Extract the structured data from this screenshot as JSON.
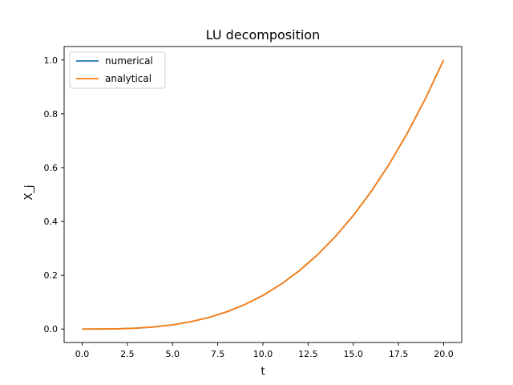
{
  "chart_data": {
    "type": "line",
    "title": "LU decomposition",
    "xlabel": "t",
    "ylabel": "X_j",
    "xlim": [
      -1.0,
      21.0
    ],
    "ylim": [
      -0.05,
      1.05
    ],
    "xticks": [
      0.0,
      2.5,
      5.0,
      7.5,
      10.0,
      12.5,
      15.0,
      17.5,
      20.0
    ],
    "xtick_labels": [
      "0.0",
      "2.5",
      "5.0",
      "7.5",
      "10.0",
      "12.5",
      "15.0",
      "17.5",
      "20.0"
    ],
    "yticks": [
      0.0,
      0.2,
      0.4,
      0.6,
      0.8,
      1.0
    ],
    "ytick_labels": [
      "0.0",
      "0.2",
      "0.4",
      "0.6",
      "0.8",
      "1.0"
    ],
    "grid": false,
    "legend_position": "top-left",
    "x": [
      0,
      1,
      2,
      3,
      4,
      5,
      6,
      7,
      8,
      9,
      10,
      11,
      12,
      13,
      14,
      15,
      16,
      17,
      18,
      19,
      20
    ],
    "series": [
      {
        "name": "numerical",
        "color": "#1f77b4",
        "values": [
          0.0,
          0.000125,
          0.001,
          0.003375,
          0.008,
          0.015625,
          0.027,
          0.042875,
          0.064,
          0.091125,
          0.125,
          0.166375,
          0.216,
          0.274625,
          0.343,
          0.421875,
          0.512,
          0.614125,
          0.729,
          0.857375,
          1.0
        ]
      },
      {
        "name": "analytical",
        "color": "#ff7f0e",
        "values": [
          0.0,
          0.000125,
          0.001,
          0.003375,
          0.008,
          0.015625,
          0.027,
          0.042875,
          0.064,
          0.091125,
          0.125,
          0.166375,
          0.216,
          0.274625,
          0.343,
          0.421875,
          0.512,
          0.614125,
          0.729,
          0.857375,
          1.0
        ]
      }
    ]
  }
}
